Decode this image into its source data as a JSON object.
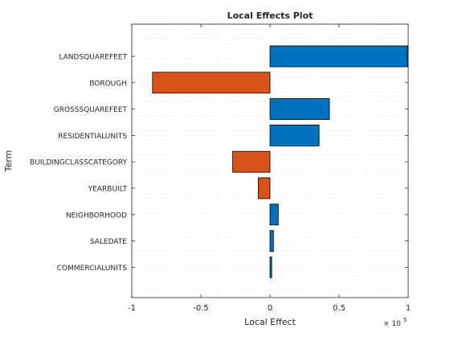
{
  "chart_data": {
    "type": "bar",
    "orientation": "horizontal",
    "title": "Local Effects Plot",
    "xlabel": "Local Effect",
    "ylabel": "Term",
    "x_exponent_label": "× 10",
    "x_exponent_power": "5",
    "xlim": [
      -100000,
      100000
    ],
    "xticks": [
      -100000,
      -50000,
      0,
      50000,
      100000
    ],
    "xtick_labels": [
      "-1",
      "-0.5",
      "0",
      "0.5",
      "1"
    ],
    "grid": "dotted minor grid",
    "categories": [
      "LANDSQUAREFEET",
      "BOROUGH",
      "GROSSSQUAREFEET",
      "RESIDENTIALUNITS",
      "BUILDINGCLASSCATEGORY",
      "YEARBUILT",
      "NEIGHBORHOOD",
      "SALEDATE",
      "COMMERCIALUNITS"
    ],
    "values": [
      99500,
      -85000,
      43000,
      35500,
      -27000,
      -8500,
      6000,
      2500,
      1200
    ],
    "colors": {
      "positive": "#0072BD",
      "negative": "#D95319"
    }
  }
}
